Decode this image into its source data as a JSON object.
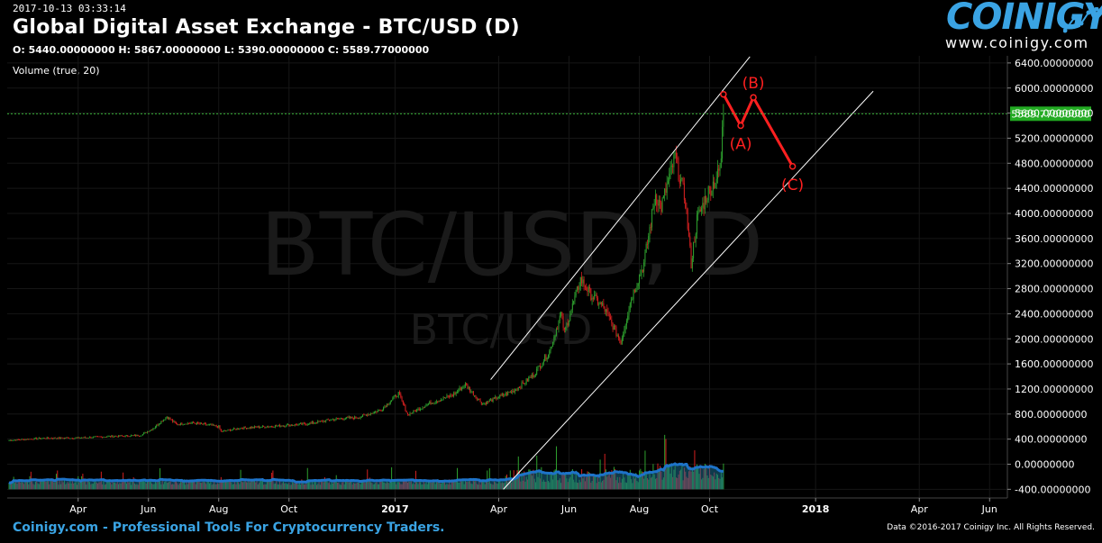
{
  "header": {
    "timestamp": "2017-10-13 03:33:14",
    "title": "Global Digital Asset Exchange - BTC/USD (D)",
    "ohlc": "O: 5440.00000000 H: 5867.00000000 L: 5390.00000000 C: 5589.77000000",
    "volume_label": "Volume (true, 20)"
  },
  "logo": {
    "name": "COINIGY",
    "url": "www.coinigy.com",
    "icon": "chart-graph-icon"
  },
  "watermark": {
    "main": "BTC/USD, D",
    "sub": "BTC/USD"
  },
  "footer": {
    "left": "Coinigy.com - Professional Tools For Cryptocurrency Traders.",
    "right": "Data ©2016-2017 Coinigy Inc. All Rights Reserved."
  },
  "colors": {
    "background": "#000000",
    "up": "#2ea02e",
    "down": "#d42020",
    "volume_ma": "#1e73c8",
    "annotation": "#ff2020",
    "price_line": "#3ec93e",
    "channel": "#ffffff",
    "brand": "#3aa3e3"
  },
  "chart_data": {
    "type": "candlestick",
    "x_tick_labels": [
      "Apr",
      "Jun",
      "Aug",
      "Oct",
      "2017",
      "Apr",
      "Jun",
      "Aug",
      "Oct",
      "2018",
      "Apr",
      "Jun"
    ],
    "x_tick_dates": [
      "2016-04-01",
      "2016-06-01",
      "2016-08-01",
      "2016-10-01",
      "2017-01-01",
      "2017-04-01",
      "2017-06-01",
      "2017-08-01",
      "2017-10-01",
      "2018-01-01",
      "2018-04-01",
      "2018-06-01"
    ],
    "y_tick_labels": [
      "6400.00000000",
      "6000.00000000",
      "5600.00000000",
      "5200.00000000",
      "4800.00000000",
      "4400.00000000",
      "4000.00000000",
      "3600.00000000",
      "3200.00000000",
      "2800.00000000",
      "2400.00000000",
      "2000.00000000",
      "1600.00000000",
      "1200.00000000",
      "800.00000000",
      "400.00000000",
      "0.00000000",
      "-400.00000000"
    ],
    "y_ticks": [
      6400,
      6000,
      5600,
      5200,
      4800,
      4400,
      4000,
      3600,
      3200,
      2800,
      2400,
      2000,
      1600,
      1200,
      800,
      400,
      0,
      -400
    ],
    "last_price_label": "5589.77000000",
    "last_price": 5589.77,
    "price_series": [
      [
        "2016-02-01",
        380
      ],
      [
        "2016-03-01",
        415
      ],
      [
        "2016-04-01",
        420
      ],
      [
        "2016-05-01",
        445
      ],
      [
        "2016-05-25",
        460
      ],
      [
        "2016-06-05",
        570
      ],
      [
        "2016-06-17",
        760
      ],
      [
        "2016-06-25",
        640
      ],
      [
        "2016-07-10",
        660
      ],
      [
        "2016-08-01",
        600
      ],
      [
        "2016-08-03",
        520
      ],
      [
        "2016-08-20",
        575
      ],
      [
        "2016-09-15",
        605
      ],
      [
        "2016-10-15",
        640
      ],
      [
        "2016-11-10",
        720
      ],
      [
        "2016-12-01",
        750
      ],
      [
        "2016-12-20",
        870
      ],
      [
        "2017-01-04",
        1130
      ],
      [
        "2017-01-12",
        790
      ],
      [
        "2017-02-01",
        980
      ],
      [
        "2017-02-20",
        1100
      ],
      [
        "2017-03-03",
        1270
      ],
      [
        "2017-03-18",
        960
      ],
      [
        "2017-03-28",
        1040
      ],
      [
        "2017-04-15",
        1180
      ],
      [
        "2017-05-01",
        1420
      ],
      [
        "2017-05-15",
        1800
      ],
      [
        "2017-05-25",
        2400
      ],
      [
        "2017-05-28",
        2100
      ],
      [
        "2017-06-11",
        2950
      ],
      [
        "2017-06-20",
        2700
      ],
      [
        "2017-07-01",
        2500
      ],
      [
        "2017-07-16",
        1950
      ],
      [
        "2017-07-25",
        2650
      ],
      [
        "2017-08-05",
        3200
      ],
      [
        "2017-08-15",
        4300
      ],
      [
        "2017-08-20",
        4100
      ],
      [
        "2017-09-01",
        4900
      ],
      [
        "2017-09-10",
        4200
      ],
      [
        "2017-09-15",
        3200
      ],
      [
        "2017-09-20",
        3900
      ],
      [
        "2017-09-30",
        4350
      ],
      [
        "2017-10-08",
        4600
      ],
      [
        "2017-10-11",
        4800
      ],
      [
        "2017-10-12",
        5430
      ],
      [
        "2017-10-13",
        5589.77
      ]
    ],
    "channel_lines": [
      {
        "start": [
          "2017-03-25",
          1350
        ],
        "end": [
          "2017-11-05",
          6500
        ]
      },
      {
        "start": [
          "2017-04-05",
          -400
        ],
        "end": [
          "2018-02-20",
          5950
        ]
      }
    ],
    "annotations": [
      {
        "label": "(A)",
        "date": "2017-10-28",
        "value": 5400
      },
      {
        "label": "(B)",
        "date": "2017-11-08",
        "value": 5850
      },
      {
        "label": "(C)",
        "date": "2017-12-12",
        "value": 4750
      }
    ],
    "annotation_path": [
      [
        "2017-10-13",
        5900
      ],
      [
        "2017-10-28",
        5400
      ],
      [
        "2017-11-08",
        5850
      ],
      [
        "2017-12-12",
        4750
      ]
    ]
  }
}
